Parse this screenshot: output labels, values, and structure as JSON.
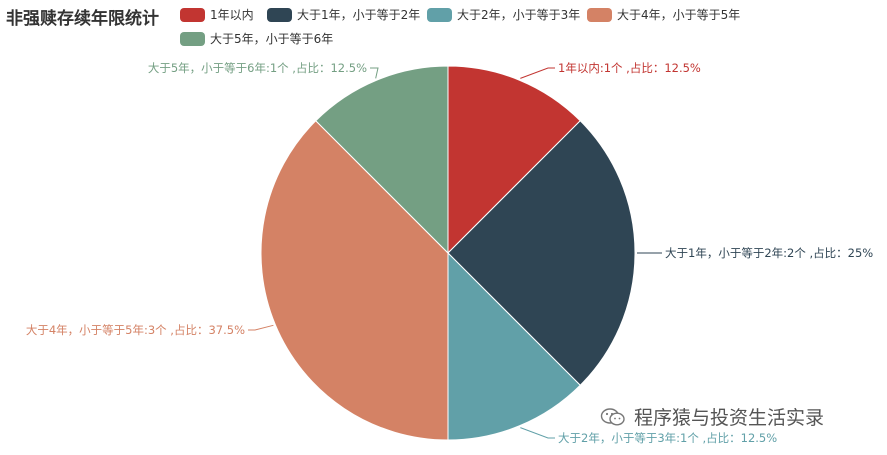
{
  "chart_data": {
    "type": "pie",
    "title": "非强赎存续年限统计",
    "slices": [
      {
        "name": "1年以内",
        "value": 1,
        "percent": 12.5,
        "color": "#c23531",
        "label": "1年以内:1个 ,占比：12.5%"
      },
      {
        "name": "大于1年，小于等于2年",
        "value": 2,
        "percent": 25,
        "color": "#2f4554",
        "label": "大于1年，小于等于2年:2个 ,占比：25%"
      },
      {
        "name": "大于2年，小于等于3年",
        "value": 1,
        "percent": 12.5,
        "color": "#61a0a8",
        "label": "大于2年，小于等于3年:1个 ,占比：12.5%"
      },
      {
        "name": "大于4年，小于等于5年",
        "value": 3,
        "percent": 37.5,
        "color": "#d48265",
        "label": "大于4年，小于等于5年:3个 ,占比：37.5%"
      },
      {
        "name": "大于5年，小于等于6年",
        "value": 1,
        "percent": 12.5,
        "color": "#749f83",
        "label": "大于5年，小于等于6年:1个 ,占比：12.5%"
      }
    ],
    "legend_position": "top"
  },
  "watermark": {
    "text": "程序猿与投资生活实录",
    "icon": "wechat-icon"
  }
}
